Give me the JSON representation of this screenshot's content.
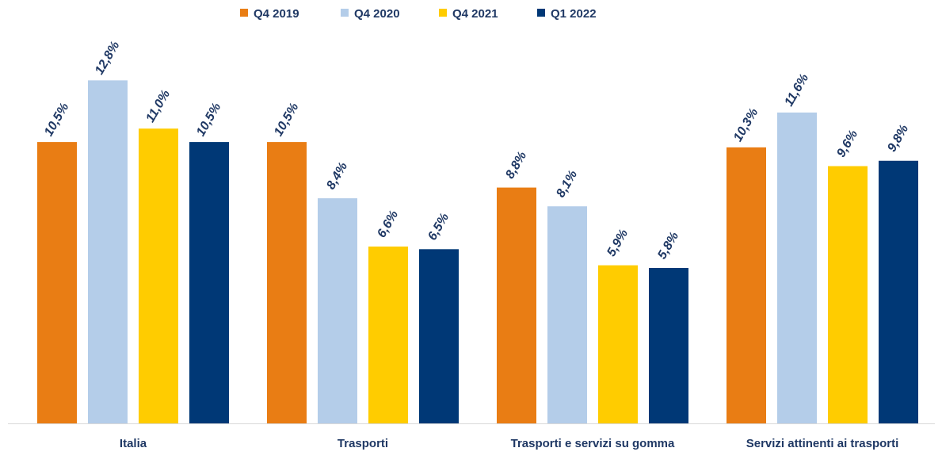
{
  "chart_data": {
    "type": "bar",
    "categories": [
      "Italia",
      "Trasporti",
      "Trasporti e servizi su gomma",
      "Servizi attinenti ai trasporti"
    ],
    "series": [
      {
        "name": "Q4 2019",
        "color": "#e97d14",
        "values": [
          10.5,
          10.5,
          8.8,
          10.3
        ],
        "labels": [
          "10,5%",
          "10,5%",
          "8,8%",
          "10,3%"
        ]
      },
      {
        "name": "Q4 2020",
        "color": "#b4cde9",
        "values": [
          12.8,
          8.4,
          8.1,
          11.6
        ],
        "labels": [
          "12,8%",
          "8,4%",
          "8,1%",
          "11,6%"
        ]
      },
      {
        "name": "Q4 2021",
        "color": "#ffcc00",
        "values": [
          11.0,
          6.6,
          5.9,
          9.6
        ],
        "labels": [
          "11,0%",
          "6,6%",
          "5,9%",
          "9,6%"
        ]
      },
      {
        "name": "Q1 2022",
        "color": "#003876",
        "values": [
          10.5,
          6.5,
          5.8,
          9.8
        ],
        "labels": [
          "10,5%",
          "6,5%",
          "5,8%",
          "9,8%"
        ]
      }
    ],
    "ylim": [
      0,
      16
    ],
    "grid": false,
    "legend_position": "top-center",
    "axis_color": "#d9d9d9",
    "label_color": "#1f3864"
  }
}
